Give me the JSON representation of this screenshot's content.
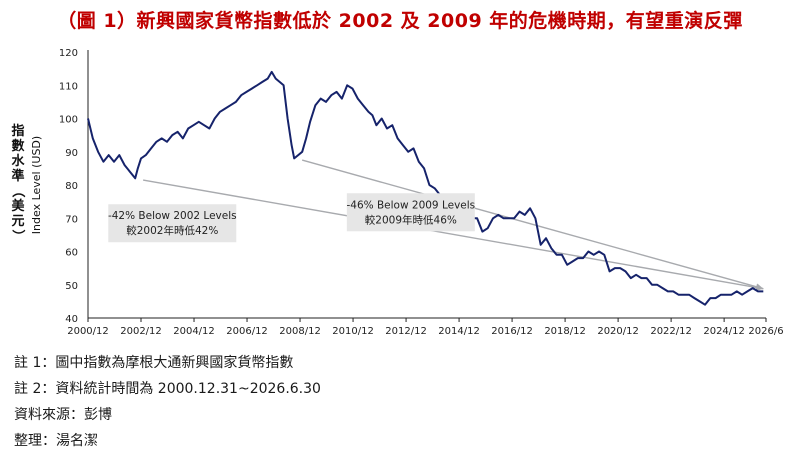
{
  "header": {
    "title": "（圖 1）新興國家貨幣指數低於 2002 及 2009 年的危機時期，有望重演反彈"
  },
  "notes": [
    "註 1：圖中指數為摩根大通新興國家貨幣指數",
    "註 2：資料統計時間為 2000.12.31~2026.6.30",
    "資料來源：彭博",
    "整理：湯名潔"
  ],
  "colors": {
    "series": "#16236b",
    "trend": "#a8aaae",
    "annotation_bg": "#e6e6e6",
    "title": "#c00000"
  },
  "chart_data": {
    "type": "line",
    "title": "（圖 1）新興國家貨幣指數低於 2002 及 2009 年的危機時期，有望重演反彈",
    "ylabel_cn": [
      "指",
      "數",
      "水",
      "準",
      "（",
      "美",
      "元",
      "）"
    ],
    "ylabel_en": "Index Level (USD)",
    "ylim": [
      40,
      120
    ],
    "yticks": [
      40,
      50,
      60,
      70,
      80,
      90,
      100,
      110,
      120
    ],
    "xlim": [
      2000.92,
      2026.5
    ],
    "xticks": [
      {
        "x": 2000.92,
        "label": "2000/12"
      },
      {
        "x": 2002.92,
        "label": "2002/12"
      },
      {
        "x": 2004.92,
        "label": "2004/12"
      },
      {
        "x": 2006.92,
        "label": "2006/12"
      },
      {
        "x": 2008.92,
        "label": "2008/12"
      },
      {
        "x": 2010.92,
        "label": "2010/12"
      },
      {
        "x": 2012.92,
        "label": "2012/12"
      },
      {
        "x": 2014.92,
        "label": "2014/12"
      },
      {
        "x": 2016.92,
        "label": "2016/12"
      },
      {
        "x": 2018.92,
        "label": "2018/12"
      },
      {
        "x": 2020.92,
        "label": "2020/12"
      },
      {
        "x": 2022.92,
        "label": "2022/12"
      },
      {
        "x": 2024.92,
        "label": "2024/12"
      },
      {
        "x": 2026.5,
        "label": "2026/6"
      }
    ],
    "grid": false,
    "series": [
      {
        "x": [
          2000.92,
          2001.1,
          2001.3,
          2001.5,
          2001.7,
          2001.9,
          2002.1,
          2002.3,
          2002.5,
          2002.7,
          2002.8,
          2002.92,
          2003.1,
          2003.3,
          2003.5,
          2003.7,
          2003.9,
          2004.1,
          2004.3,
          2004.5,
          2004.7,
          2004.9,
          2005.1,
          2005.3,
          2005.5,
          2005.7,
          2005.9,
          2006.1,
          2006.3,
          2006.5,
          2006.7,
          2006.9,
          2007.1,
          2007.3,
          2007.5,
          2007.7,
          2007.85,
          2008.0,
          2008.15,
          2008.3,
          2008.45,
          2008.6,
          2008.7,
          2008.85,
          2009.0,
          2009.15,
          2009.3,
          2009.5,
          2009.7,
          2009.9,
          2010.1,
          2010.3,
          2010.5,
          2010.7,
          2010.9,
          2011.1,
          2011.3,
          2011.5,
          2011.65,
          2011.8,
          2012.0,
          2012.2,
          2012.4,
          2012.6,
          2012.8,
          2013.0,
          2013.2,
          2013.4,
          2013.6,
          2013.8,
          2014.0,
          2014.2,
          2014.4,
          2014.6,
          2014.8,
          2015.0,
          2015.2,
          2015.4,
          2015.6,
          2015.8,
          2016.0,
          2016.2,
          2016.4,
          2016.6,
          2016.8,
          2017.0,
          2017.2,
          2017.4,
          2017.6,
          2017.8,
          2018.0,
          2018.2,
          2018.4,
          2018.6,
          2018.8,
          2019.0,
          2019.2,
          2019.4,
          2019.6,
          2019.8,
          2020.0,
          2020.2,
          2020.4,
          2020.6,
          2020.8,
          2021.0,
          2021.2,
          2021.4,
          2021.6,
          2021.8,
          2022.0,
          2022.2,
          2022.4,
          2022.6,
          2022.8,
          2023.0,
          2023.2,
          2023.4,
          2023.6,
          2023.8,
          2024.0,
          2024.2,
          2024.4,
          2024.6,
          2024.8,
          2025.0,
          2025.2,
          2025.4,
          2025.6,
          2025.8,
          2026.0,
          2026.2,
          2026.4
        ],
        "y": [
          100,
          94,
          90,
          87,
          89,
          87,
          89,
          86,
          84,
          82,
          85,
          88,
          89,
          91,
          93,
          94,
          93,
          95,
          96,
          94,
          97,
          98,
          99,
          98,
          97,
          100,
          102,
          103,
          104,
          105,
          107,
          108,
          109,
          110,
          111,
          112,
          114,
          112,
          111,
          110,
          100,
          92,
          88,
          89,
          90,
          94,
          99,
          104,
          106,
          105,
          107,
          108,
          106,
          110,
          109,
          106,
          104,
          102,
          101,
          98,
          100,
          97,
          98,
          94,
          92,
          90,
          91,
          87,
          85,
          80,
          79,
          77,
          76,
          76,
          75,
          71,
          69,
          70,
          70,
          66,
          67,
          70,
          71,
          70,
          70,
          70,
          72,
          71,
          73,
          70,
          62,
          64,
          61,
          59,
          59,
          56,
          57,
          58,
          58,
          60,
          59,
          60,
          59,
          54,
          55,
          55,
          54,
          52,
          53,
          52,
          52,
          50,
          50,
          49,
          48,
          48,
          47,
          47,
          47,
          46,
          45,
          44,
          46,
          46,
          47,
          47,
          47,
          48,
          47,
          48,
          49,
          48,
          48
        ]
      }
    ],
    "trendlines": [
      {
        "x": [
          2003.0,
          2026.4
        ],
        "y": [
          81.5,
          48.8
        ]
      },
      {
        "x": [
          2009.0,
          2026.4
        ],
        "y": [
          87.5,
          48.8
        ]
      }
    ],
    "annotations": [
      {
        "lines": [
          "-42% Below 2002 Levels",
          "較2002年時低42%"
        ],
        "x": 2004.1,
        "y": 68.5
      },
      {
        "lines": [
          "-46% Below 2009 Levels",
          "較2009年時低46%"
        ],
        "x": 2013.1,
        "y": 71.8
      }
    ]
  }
}
